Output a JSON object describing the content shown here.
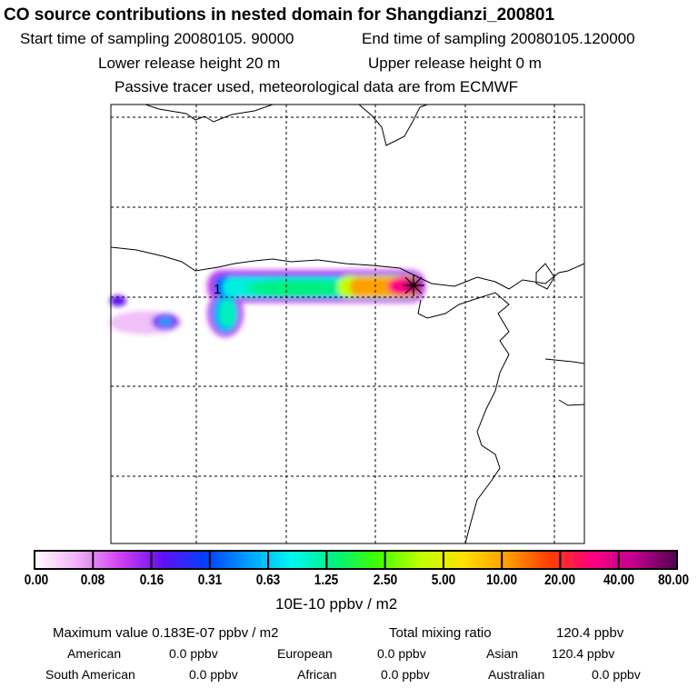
{
  "header": {
    "title": "CO  source contributions in nested domain for Shangdianzi_200801",
    "start_label": "Start time of sampling 20080105. 90000",
    "end_label": "End time of sampling 20080105.120000",
    "lower_label": "Lower release height   20 m",
    "upper_label": "Upper release height    0 m",
    "tracer_label": "Passive tracer used, meteorological data are from ECMWF"
  },
  "map": {
    "marker_label": "1"
  },
  "chart_data": {
    "type": "heatmap",
    "title": "CO  source contributions in nested domain for Shangdianzi_200801",
    "colorbar_ticks": [
      "0.00",
      "0.08",
      "0.16",
      "0.31",
      "0.63",
      "1.25",
      "2.50",
      "5.00",
      "10.00",
      "20.00",
      "40.00",
      "80.00"
    ],
    "colorbar_colors": [
      "#ffffff",
      "#f0b0f8",
      "#d040f0",
      "#6010f0",
      "#0040ff",
      "#00a0ff",
      "#00f8f0",
      "#00f080",
      "#40ff00",
      "#c0ff00",
      "#ffe000",
      "#ffa000",
      "#ff4000",
      "#ff0080",
      "#c00090",
      "#500050"
    ],
    "units": "10E-10 ppbv / m2"
  },
  "footer": {
    "max_label": "Maximum value  0.183E-07 ppbv / m2",
    "total_label": "Total mixing ratio",
    "total_value": "120.4 ppbv",
    "regions": [
      {
        "name": "American",
        "value": "0.0 ppbv"
      },
      {
        "name": "European",
        "value": "0.0 ppbv"
      },
      {
        "name": "Asian",
        "value": "120.4 ppbv"
      },
      {
        "name": "South American",
        "value": "0.0 ppbv"
      },
      {
        "name": "African",
        "value": "0.0 ppbv"
      },
      {
        "name": "Australian",
        "value": "0.0 ppbv"
      }
    ]
  }
}
